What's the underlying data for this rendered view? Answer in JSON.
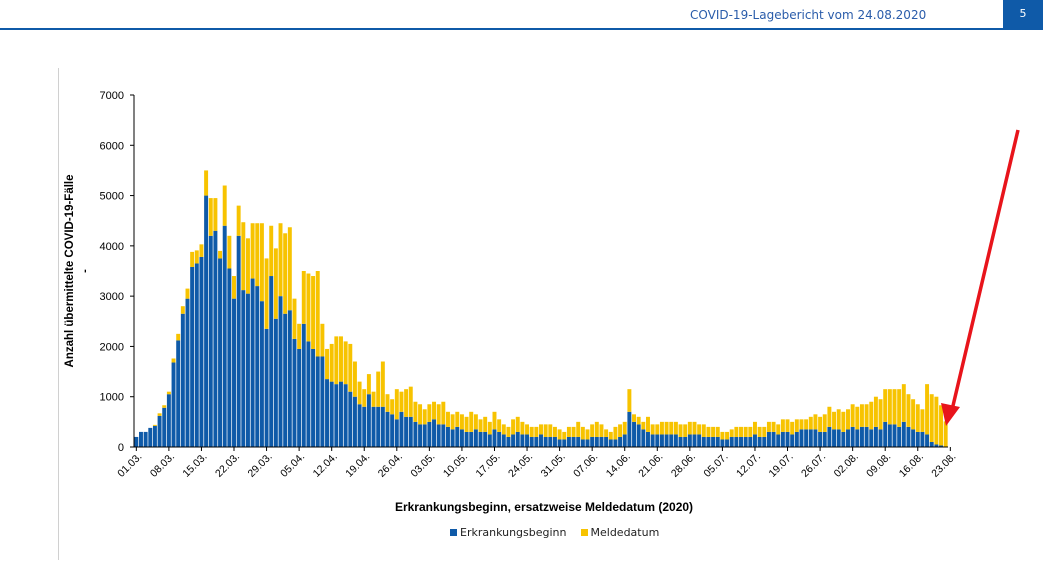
{
  "header": {
    "title": "COVID-19-Lagebericht vom 24.08.2020",
    "page_number": "5"
  },
  "colors": {
    "brand": "#0f5aa8",
    "series_erkrankung": "#0f5aa8",
    "series_melde": "#f7c300",
    "arrow": "#e8141b"
  },
  "chart_data": {
    "type": "bar",
    "stacked": true,
    "title": "",
    "xlabel": "Erkrankungsbeginn, ersatzweise Meldedatum (2020)",
    "ylabel": "Anzahl übermittelte COVID-19-Fälle",
    "ylim": [
      0,
      7000
    ],
    "yticks": [
      "0",
      "1000",
      "2000",
      "3000",
      "4000",
      "5000",
      "6000",
      "7000"
    ],
    "xtick_labels": [
      "01.03.",
      "08.03.",
      "15.03.",
      "22.03.",
      "29.03.",
      "05.04.",
      "12.04.",
      "19.04.",
      "26.04.",
      "03.05.",
      "10.05.",
      "17.05.",
      "24.05.",
      "31.05.",
      "07.06.",
      "14.06.",
      "21.06.",
      "28.06.",
      "05.07.",
      "12.07.",
      "19.07.",
      "26.07.",
      "02.08.",
      "09.08.",
      "16.08.",
      "23.08."
    ],
    "legend": [
      "Erkrankungsbeginn",
      "Meldedatum"
    ],
    "series": [
      {
        "name": "Erkrankungsbeginn",
        "values": [
          200,
          300,
          300,
          380,
          420,
          620,
          780,
          1050,
          1680,
          2120,
          2650,
          2950,
          3580,
          3650,
          3780,
          5000,
          4200,
          4300,
          3750,
          4400,
          3550,
          2950,
          4200,
          3120,
          3050,
          3350,
          3200,
          2900,
          2350,
          3400,
          2550,
          3000,
          2650,
          2720,
          2150,
          1950,
          2450,
          2100,
          1950,
          1800,
          1800,
          1350,
          1300,
          1250,
          1300,
          1250,
          1100,
          1000,
          850,
          800,
          1050,
          800,
          800,
          800,
          700,
          650,
          550,
          700,
          600,
          600,
          500,
          450,
          450,
          500,
          550,
          450,
          450,
          400,
          350,
          400,
          350,
          300,
          300,
          350,
          300,
          300,
          250,
          350,
          300,
          250,
          200,
          250,
          300,
          250,
          250,
          200,
          200,
          250,
          200,
          200,
          200,
          150,
          150,
          200,
          200,
          200,
          150,
          150,
          200,
          200,
          200,
          200,
          150,
          150,
          200,
          250,
          700,
          500,
          450,
          350,
          300,
          250,
          250,
          250,
          250,
          250,
          250,
          200,
          200,
          250,
          250,
          250,
          200,
          200,
          200,
          200,
          150,
          150,
          200,
          200,
          200,
          200,
          200,
          250,
          200,
          200,
          300,
          300,
          250,
          300,
          300,
          250,
          300,
          350,
          350,
          350,
          350,
          300,
          300,
          400,
          350,
          350,
          300,
          350,
          400,
          350,
          400,
          400,
          350,
          400,
          350,
          500,
          450,
          450,
          400,
          500,
          400,
          350,
          300,
          300,
          250,
          100,
          50,
          30,
          10
        ]
      },
      {
        "name": "Meldedatum",
        "values": [
          0,
          0,
          0,
          0,
          20,
          50,
          50,
          50,
          80,
          130,
          150,
          200,
          300,
          260,
          250,
          500,
          750,
          650,
          150,
          800,
          650,
          450,
          600,
          1350,
          1100,
          1100,
          1250,
          1550,
          1400,
          1000,
          1400,
          1450,
          1600,
          1650,
          800,
          500,
          1050,
          1350,
          1450,
          1700,
          650,
          600,
          750,
          950,
          900,
          850,
          950,
          700,
          450,
          350,
          400,
          300,
          700,
          900,
          350,
          300,
          600,
          400,
          550,
          600,
          400,
          400,
          300,
          350,
          350,
          400,
          450,
          300,
          300,
          300,
          300,
          300,
          400,
          300,
          250,
          300,
          250,
          350,
          250,
          200,
          200,
          300,
          300,
          250,
          200,
          200,
          200,
          200,
          250,
          250,
          200,
          200,
          150,
          200,
          200,
          300,
          250,
          200,
          250,
          300,
          250,
          150,
          150,
          250,
          250,
          250,
          450,
          150,
          150,
          150,
          300,
          200,
          200,
          250,
          250,
          250,
          250,
          250,
          250,
          250,
          250,
          200,
          250,
          200,
          200,
          200,
          150,
          150,
          150,
          200,
          200,
          200,
          200,
          250,
          200,
          200,
          200,
          200,
          200,
          250,
          250,
          250,
          250,
          200,
          200,
          250,
          300,
          300,
          350,
          400,
          350,
          400,
          400,
          400,
          450,
          450,
          450,
          450,
          550,
          600,
          600,
          650,
          700,
          700,
          750,
          750,
          650,
          600,
          550,
          450,
          1000,
          950,
          950,
          800,
          500,
          150
        ]
      }
    ]
  }
}
